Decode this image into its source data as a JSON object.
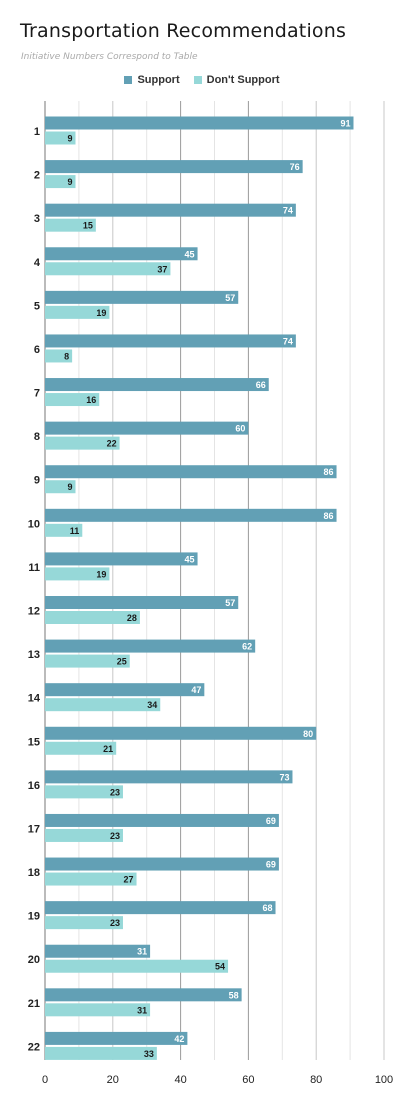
{
  "chart_data": {
    "type": "bar",
    "orientation": "horizontal",
    "title": "Transportation Recommendations",
    "subtitle": "Initiative Numbers Correspond to Table",
    "xlabel": "",
    "ylabel": "",
    "xlim": [
      0,
      100
    ],
    "x_ticks": [
      "0",
      "20",
      "40",
      "60",
      "80",
      "100"
    ],
    "grid": true,
    "legend_position": "top-center",
    "categories": [
      "1",
      "2",
      "3",
      "4",
      "5",
      "6",
      "7",
      "8",
      "9",
      "10",
      "11",
      "12",
      "13",
      "14",
      "15",
      "16",
      "17",
      "18",
      "19",
      "20",
      "21",
      "22"
    ],
    "series": [
      {
        "name": "Support",
        "color": "#62a0b5",
        "values": [
          91,
          76,
          74,
          45,
          57,
          74,
          66,
          60,
          86,
          86,
          45,
          57,
          62,
          47,
          80,
          73,
          69,
          69,
          68,
          31,
          58,
          42
        ]
      },
      {
        "name": "Don't Support",
        "color": "#96d8d8",
        "values": [
          9,
          9,
          15,
          37,
          19,
          8,
          16,
          22,
          9,
          11,
          19,
          28,
          25,
          34,
          21,
          23,
          23,
          27,
          23,
          54,
          31,
          33
        ]
      }
    ]
  }
}
